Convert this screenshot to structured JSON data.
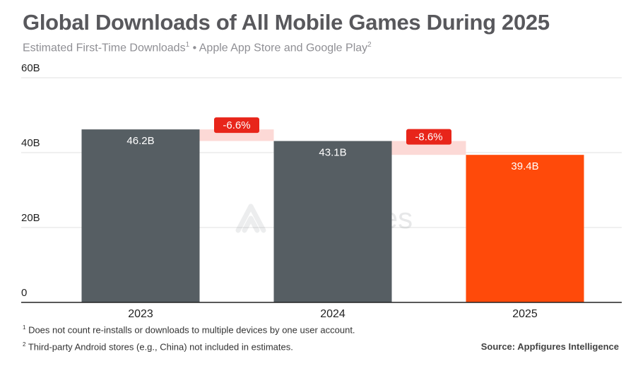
{
  "title": "Global Downloads of All Mobile Games During 2025",
  "subtitle": {
    "part1": "Estimated First-Time Downloads",
    "sup1": "1",
    "part2": " • Apple App Store and Google Play",
    "sup2": "2"
  },
  "watermark": "appfigures",
  "footnotes": [
    {
      "marker": "1",
      "text": " Does not count re-installs or downloads to multiple devices by one user account."
    },
    {
      "marker": "2",
      "text": " Third-party Android stores (e.g., China) not included in estimates."
    }
  ],
  "source": "Source: Appfigures Intelligence",
  "colors": {
    "bar_default": "#565e63",
    "bar_highlight": "#ff4a0a",
    "change_badge": "#e8251a",
    "change_band": "#fcd9d6",
    "grid": "#e6e6e6",
    "axis": "#222222"
  },
  "chart_data": {
    "type": "bar",
    "title": "Global Downloads of All Mobile Games During 2025",
    "categories": [
      "2023",
      "2024",
      "2025"
    ],
    "values": [
      46.2,
      43.1,
      39.4
    ],
    "value_labels": [
      "46.2B",
      "43.1B",
      "39.4B"
    ],
    "unit": "B",
    "ylim": [
      0,
      60
    ],
    "yticks": [
      0,
      20,
      40,
      60
    ],
    "ytick_labels": [
      "0",
      "20B",
      "40B",
      "60B"
    ],
    "grid": true,
    "highlight_category": "2025",
    "changes": [
      {
        "from": "2023",
        "to": "2024",
        "label": "-6.6%"
      },
      {
        "from": "2024",
        "to": "2025",
        "label": "-8.6%"
      }
    ]
  }
}
